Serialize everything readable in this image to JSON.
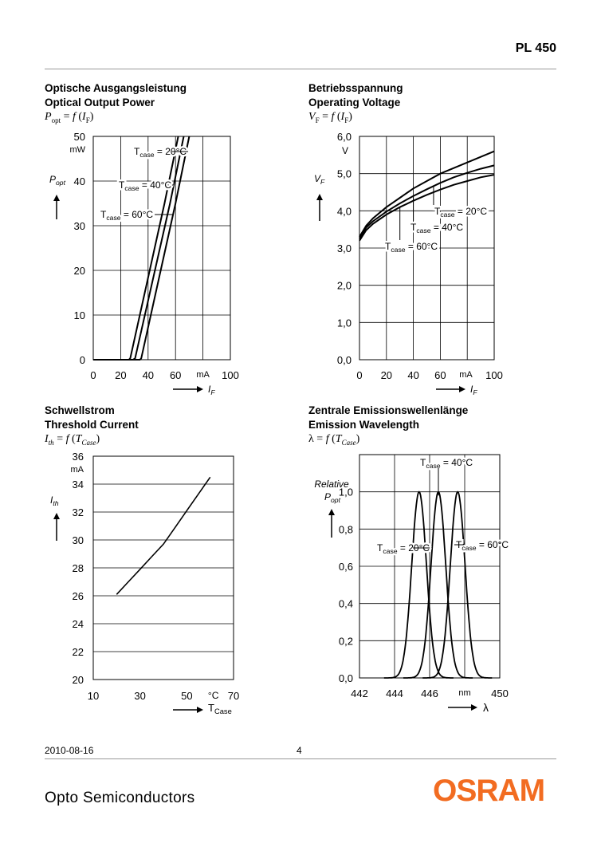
{
  "header": {
    "product": "PL 450"
  },
  "footer": {
    "date": "2010-08-16",
    "page": "4",
    "company": "Opto Semiconductors",
    "logo": "OSRAM",
    "logo_color": "#f26c21"
  },
  "chart_data": [
    {
      "type": "line",
      "title": [
        "Optische Ausgangsleistung",
        "Optical Output Power"
      ],
      "formula": {
        "y": "P",
        "y_sub": "opt",
        "x": "I",
        "x_sub": "F"
      },
      "ylabel": "P",
      "ylabel_sub": "opt",
      "yunit": "mW",
      "xlabel": "I",
      "xlabel_sub": "F",
      "xunit": "mA",
      "xlim": [
        0,
        100
      ],
      "ylim": [
        0,
        50
      ],
      "xticks": [
        "0",
        "20",
        "40",
        "60",
        "100"
      ],
      "yticks": [
        "0",
        "10",
        "20",
        "30",
        "40",
        "50"
      ],
      "grid": true,
      "series": [
        {
          "name": "T",
          "name_sub": "case",
          "name_val": " = 20°C",
          "x": [
            0,
            26,
            27,
            52,
            62
          ],
          "y": [
            0,
            0,
            0.3,
            35,
            50
          ]
        },
        {
          "name": "T",
          "name_sub": "case",
          "name_val": " = 40°C",
          "x": [
            0,
            29,
            30.5,
            56,
            66
          ],
          "y": [
            0,
            0,
            0.3,
            35,
            50
          ]
        },
        {
          "name": "T",
          "name_sub": "case",
          "name_val": " = 60°C",
          "x": [
            0,
            34,
            35,
            60,
            70
          ],
          "y": [
            0,
            0,
            0.3,
            35,
            50
          ]
        }
      ]
    },
    {
      "type": "line",
      "title": [
        "Betriebsspannung",
        "Operating Voltage"
      ],
      "formula": {
        "y": "V",
        "y_sub": "F",
        "x": "I",
        "x_sub": "F"
      },
      "ylabel": "V",
      "ylabel_sub": "F",
      "yunit": "V",
      "xlabel": "I",
      "xlabel_sub": "F",
      "xunit": "mA",
      "xlim": [
        0,
        100
      ],
      "ylim": [
        0,
        6
      ],
      "xticks": [
        "0",
        "20",
        "40",
        "60",
        "100"
      ],
      "yticks": [
        "0,0",
        "1,0",
        "2,0",
        "3,0",
        "4,0",
        "5,0",
        "6,0"
      ],
      "grid": true,
      "series": [
        {
          "name": "T",
          "name_sub": "case",
          "name_val": " = 20°C",
          "x": [
            0,
            5,
            10,
            20,
            30,
            40,
            50,
            60,
            70,
            80,
            90,
            100
          ],
          "y": [
            3.3,
            3.6,
            3.8,
            4.1,
            4.35,
            4.6,
            4.8,
            5.0,
            5.15,
            5.3,
            5.45,
            5.6
          ]
        },
        {
          "name": "T",
          "name_sub": "case",
          "name_val": " = 40°C",
          "x": [
            0,
            5,
            10,
            20,
            30,
            40,
            50,
            60,
            70,
            80,
            90,
            100
          ],
          "y": [
            3.25,
            3.55,
            3.72,
            3.98,
            4.2,
            4.4,
            4.58,
            4.75,
            4.9,
            5.02,
            5.13,
            5.22
          ]
        },
        {
          "name": "T",
          "name_sub": "case",
          "name_val": " = 60°C",
          "x": [
            0,
            5,
            10,
            20,
            30,
            40,
            50,
            60,
            70,
            80,
            90,
            100
          ],
          "y": [
            3.2,
            3.48,
            3.65,
            3.9,
            4.1,
            4.27,
            4.43,
            4.57,
            4.7,
            4.8,
            4.9,
            4.97
          ]
        }
      ]
    },
    {
      "type": "line",
      "title": [
        "Schwellstrom",
        "Threshold Current"
      ],
      "formula": {
        "y": "I",
        "y_sub": "th",
        "x": "T",
        "x_sub": "Case"
      },
      "ylabel": "I",
      "ylabel_sub": "th",
      "yunit": "mA",
      "xlabel": "T",
      "xlabel_sub": "Case",
      "xunit": "°C",
      "xlim": [
        10,
        70
      ],
      "ylim": [
        20,
        36
      ],
      "xticks": [
        "10",
        "30",
        "50",
        "70"
      ],
      "yticks": [
        "20",
        "22",
        "24",
        "26",
        "28",
        "30",
        "32",
        "34",
        "36"
      ],
      "grid": true,
      "series": [
        {
          "x": [
            20,
            25,
            30,
            35,
            40,
            45,
            50,
            55,
            60
          ],
          "y": [
            26.1,
            27.0,
            27.9,
            28.8,
            29.7,
            30.9,
            32.1,
            33.3,
            34.5
          ]
        }
      ]
    },
    {
      "type": "line",
      "title": [
        "Zentrale Emissionswellenlänge",
        "Emission Wavelength"
      ],
      "formula": {
        "y": "λ",
        "y_sub": "",
        "x": "T",
        "x_sub": "Case"
      },
      "ylabel_top": "Relative",
      "ylabel": "P",
      "ylabel_sub": "opt",
      "xlabel": "λ",
      "xunit": "nm",
      "xlim": [
        442,
        450
      ],
      "ylim": [
        0,
        1.2
      ],
      "xticks": [
        "442",
        "444",
        "446",
        "450"
      ],
      "yticks": [
        "0,0",
        "0,2",
        "0,4",
        "0,6",
        "0,8",
        "1,0"
      ],
      "grid": true,
      "series": [
        {
          "name": "T",
          "name_sub": "case",
          "name_val": " = 20°C",
          "center": 445.4,
          "sigma": 0.42,
          "peak": 1.0
        },
        {
          "name": "T",
          "name_sub": "case",
          "name_val": " = 40°C",
          "center": 446.5,
          "sigma": 0.42,
          "peak": 1.0
        },
        {
          "name": "T",
          "name_sub": "case",
          "name_val": " = 60°C",
          "center": 447.6,
          "sigma": 0.42,
          "peak": 1.0
        }
      ]
    }
  ]
}
